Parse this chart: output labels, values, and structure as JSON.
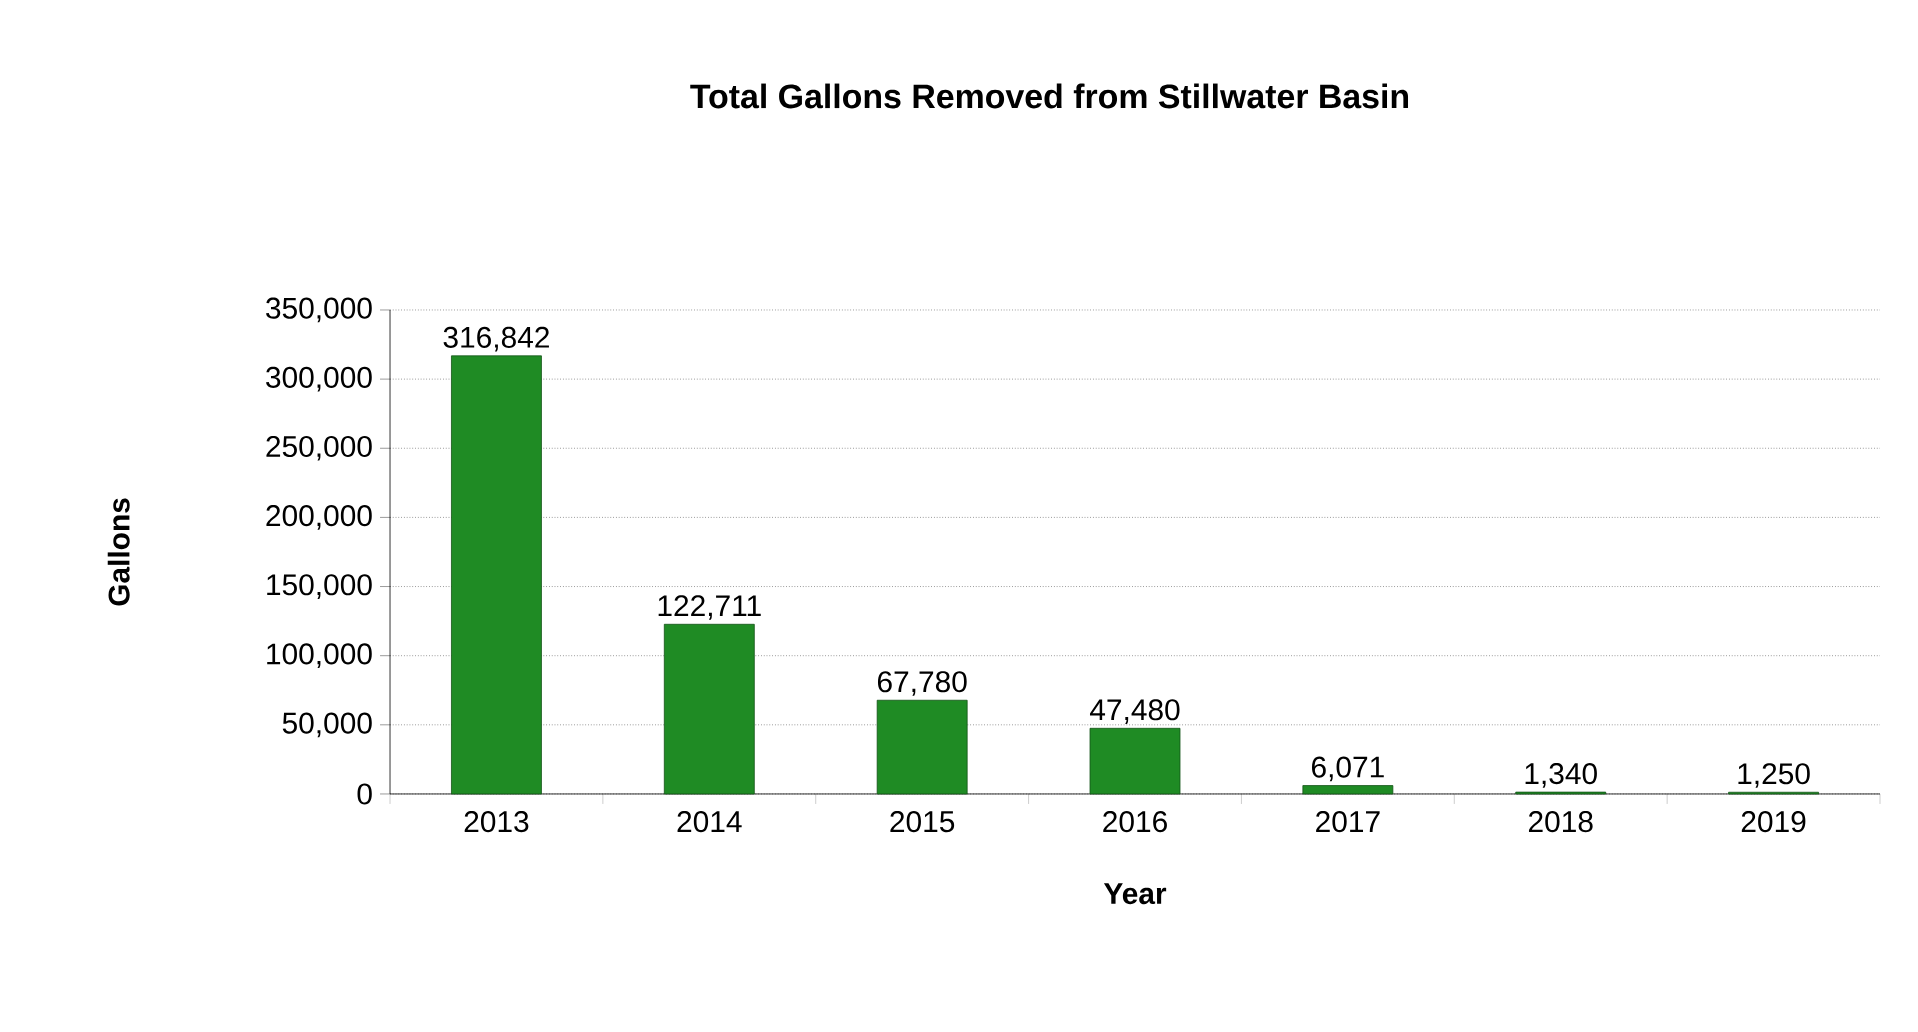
{
  "chart_data": {
    "type": "bar",
    "title": "Total Gallons Removed from Stillwater Basin",
    "xlabel": "Year",
    "ylabel": "Gallons",
    "categories": [
      "2013",
      "2014",
      "2015",
      "2016",
      "2017",
      "2018",
      "2019"
    ],
    "values": [
      316842,
      122711,
      67780,
      47480,
      6071,
      1340,
      1250
    ],
    "value_labels": [
      "316,842",
      "122,711",
      "67,780",
      "47,480",
      "6,071",
      "1,340",
      "1,250"
    ],
    "color": "#1f8b24",
    "ylim": [
      0,
      350000
    ],
    "yticks": [
      0,
      {
        "value": 50000,
        "label": "50,000"
      },
      {
        "value": 100000,
        "label": "100,000"
      },
      {
        "value": 150000,
        "label": "150,000"
      },
      {
        "value": 200000,
        "label": "200,000"
      },
      {
        "value": 250000,
        "label": "250,000"
      },
      {
        "value": 300000,
        "label": "300,000"
      },
      {
        "value": 350000,
        "label": "350,000"
      }
    ],
    "grid": "y"
  }
}
